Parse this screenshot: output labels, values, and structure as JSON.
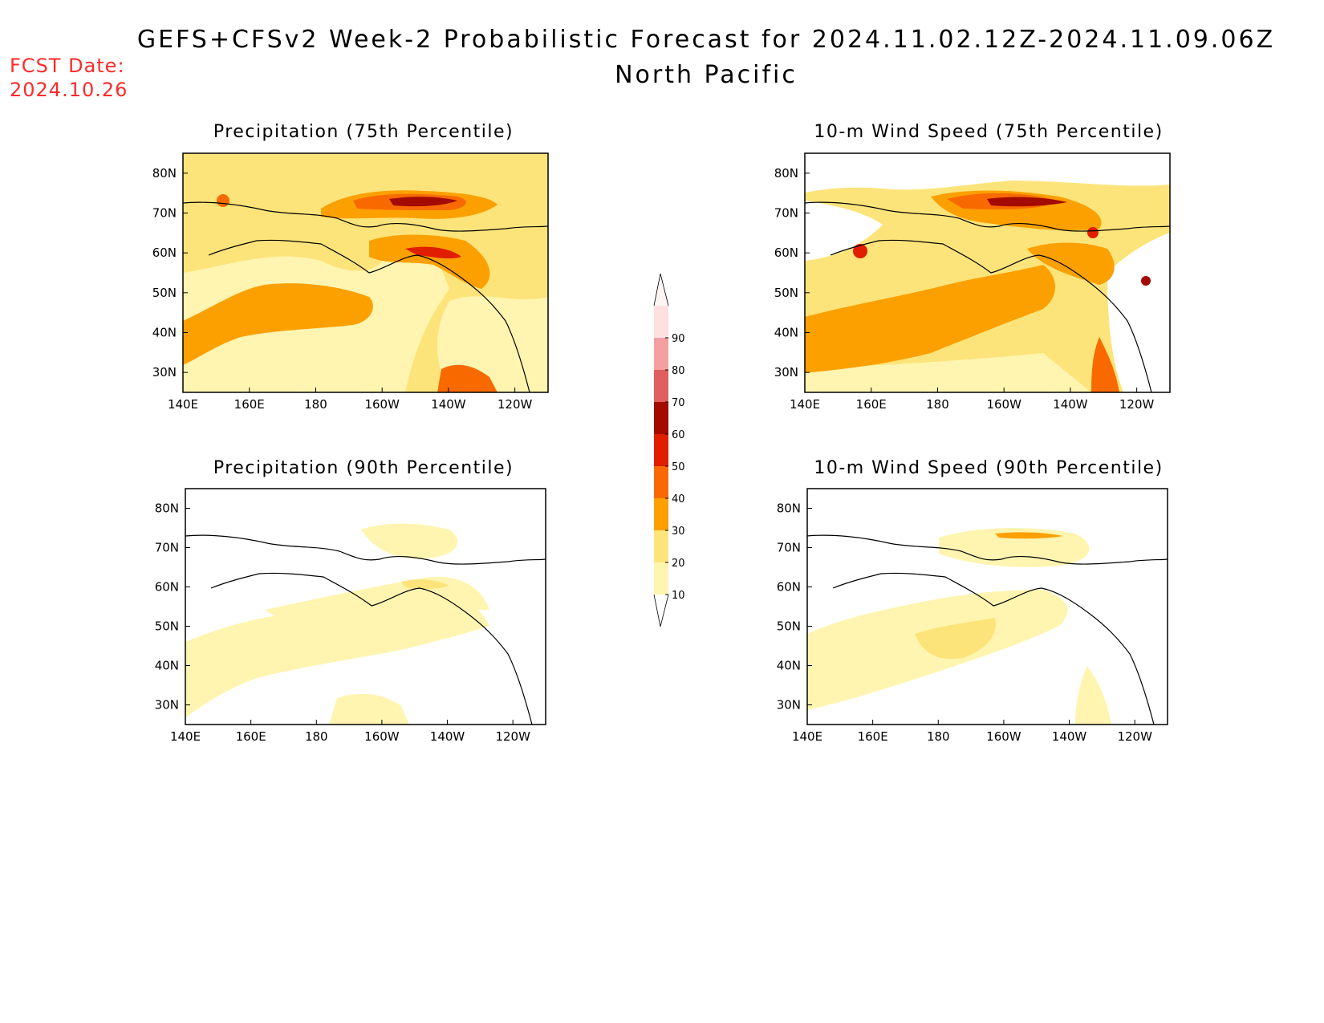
{
  "header": {
    "title": "GEFS+CFSv2 Week-2 Probabilistic Forecast for 2024.11.02.12Z-2024.11.09.06Z",
    "region": "North Pacific",
    "fcst_label": "FCST Date:",
    "fcst_date": "2024.10.26"
  },
  "panels": [
    {
      "id": "precip-75",
      "title": "Precipitation (75th Percentile)"
    },
    {
      "id": "wind-75",
      "title": "10-m Wind Speed (75th Percentile)"
    },
    {
      "id": "precip-90",
      "title": "Precipitation (90th Percentile)"
    },
    {
      "id": "wind-90",
      "title": "10-m Wind Speed (90th Percentile)"
    }
  ],
  "axes": {
    "lon_ticks": [
      "140E",
      "160E",
      "180",
      "160W",
      "140W",
      "120W"
    ],
    "lat_ticks": [
      "80N",
      "70N",
      "60N",
      "50N",
      "40N",
      "30N"
    ],
    "lon_range": [
      "140E",
      "110W"
    ],
    "lat_range": [
      "25N",
      "85N"
    ]
  },
  "colorbar": {
    "levels": [
      "10",
      "20",
      "30",
      "40",
      "50",
      "60",
      "70",
      "80",
      "90"
    ],
    "colors": [
      "#fff5b0",
      "#fde47a",
      "#fca000",
      "#f86a00",
      "#e01e00",
      "#a30a00",
      "#e06060",
      "#f5a0a0",
      "#ffe0e0"
    ]
  }
}
